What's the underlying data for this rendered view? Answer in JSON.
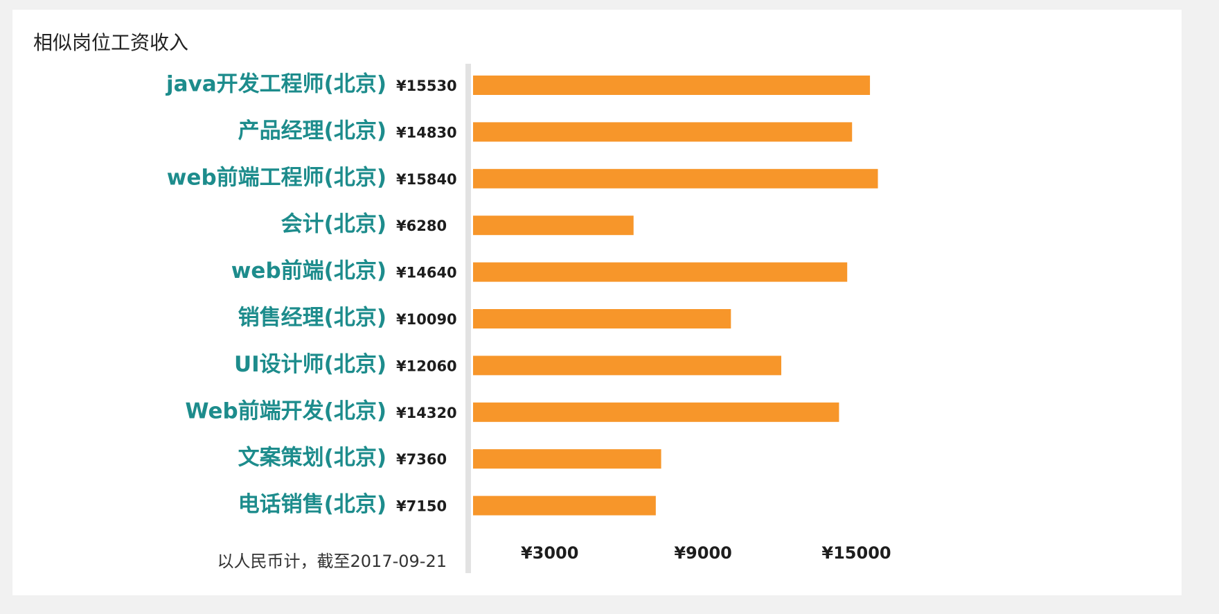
{
  "title": "相似岗位工资收入",
  "note": "以人民币计，截至2017-09-21",
  "colors": {
    "bar": "#f7962a",
    "label": "#1d8c8c",
    "axis": "#e2e2e2",
    "panel": "#ffffff",
    "background": "#f1f1f1"
  },
  "chart_data": {
    "type": "bar",
    "orientation": "horizontal",
    "title": "相似岗位工资收入",
    "categories": [
      "java开发工程师(北京)",
      "产品经理(北京)",
      "web前端工程师(北京)",
      "会计(北京)",
      "web前端(北京)",
      "销售经理(北京)",
      "UI设计师(北京)",
      "Web前端开发(北京)",
      "文案策划(北京)",
      "电话销售(北京)"
    ],
    "values": [
      15530,
      14830,
      15840,
      6280,
      14640,
      10090,
      12060,
      14320,
      7360,
      7150
    ],
    "value_labels": [
      "¥15530",
      "¥14830",
      "¥15840",
      "¥6280",
      "¥14640",
      "¥10090",
      "¥12060",
      "¥14320",
      "¥7360",
      "¥7150"
    ],
    "x_ticks": [
      3000,
      9000,
      15000
    ],
    "x_tick_labels": [
      "¥3000",
      "¥9000",
      "¥15000"
    ],
    "xlim": [
      0,
      16000
    ],
    "grid": false,
    "legend": "none"
  }
}
